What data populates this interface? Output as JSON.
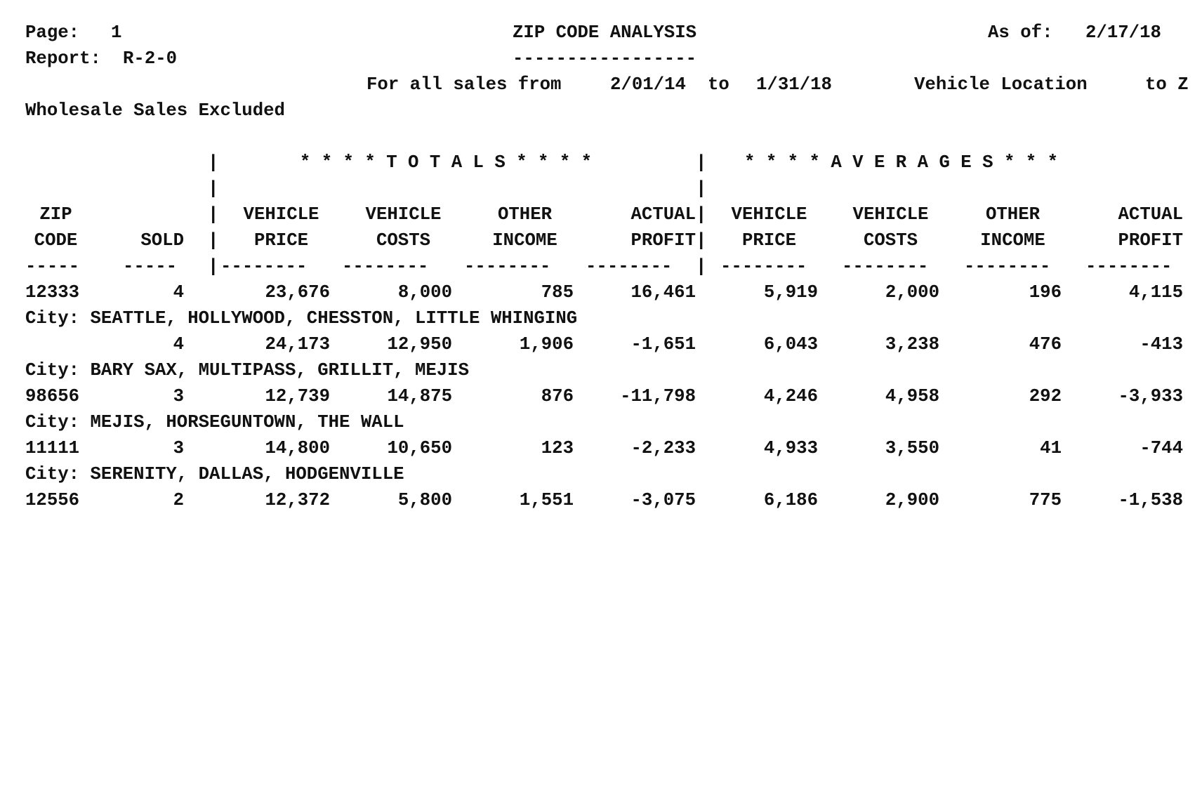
{
  "header": {
    "page_label": "Page:",
    "page_number": "1",
    "report_label": "Report:",
    "report_id": "R-2-0",
    "title": "ZIP CODE ANALYSIS",
    "title_underline": "-----------------",
    "as_of_label": "As of:",
    "as_of_date": "2/17/18",
    "date_range_prefix": "For all sales from",
    "date_from": "2/01/14",
    "date_to_label": "to",
    "date_to": "1/31/18",
    "location_label": "Vehicle Location",
    "location_range": "to Z",
    "wholesale_note": "Wholesale Sales Excluded"
  },
  "groups": {
    "totals": "* * * * T O T A L S * * * *",
    "averages": "* * * * A V E R A G E S * * *"
  },
  "columns": [
    {
      "key": "zip",
      "top": "ZIP",
      "bottom": "CODE",
      "rule": "-----"
    },
    {
      "key": "sold",
      "top": "",
      "bottom": "SOLD",
      "rule": "-----"
    },
    {
      "key": "tot_price",
      "top": "VEHICLE",
      "bottom": "PRICE",
      "rule": "--------"
    },
    {
      "key": "tot_costs",
      "top": "VEHICLE",
      "bottom": "COSTS",
      "rule": "--------"
    },
    {
      "key": "tot_income",
      "top": "OTHER",
      "bottom": "INCOME",
      "rule": "--------"
    },
    {
      "key": "tot_profit",
      "top": "ACTUAL",
      "bottom": "PROFIT",
      "rule": "--------"
    },
    {
      "key": "avg_price",
      "top": "VEHICLE",
      "bottom": "PRICE",
      "rule": "--------"
    },
    {
      "key": "avg_costs",
      "top": "VEHICLE",
      "bottom": "COSTS",
      "rule": "--------"
    },
    {
      "key": "avg_income",
      "top": "OTHER",
      "bottom": "INCOME",
      "rule": "--------"
    },
    {
      "key": "avg_profit",
      "top": "ACTUAL",
      "bottom": "PROFIT",
      "rule": "--------"
    }
  ],
  "separator": "|",
  "rows": [
    {
      "zip": "12333",
      "sold": "4",
      "tot_price": "23,676",
      "tot_costs": "8,000",
      "tot_income": "785",
      "tot_profit": "16,461",
      "avg_price": "5,919",
      "avg_costs": "2,000",
      "avg_income": "196",
      "avg_profit": "4,115",
      "city": "City: SEATTLE, HOLLYWOOD, CHESSTON, LITTLE WHINGING"
    },
    {
      "zip": "",
      "sold": "4",
      "tot_price": "24,173",
      "tot_costs": "12,950",
      "tot_income": "1,906",
      "tot_profit": "-1,651",
      "avg_price": "6,043",
      "avg_costs": "3,238",
      "avg_income": "476",
      "avg_profit": "-413",
      "city": "City: BARY SAX, MULTIPASS, GRILLIT, MEJIS"
    },
    {
      "zip": "98656",
      "sold": "3",
      "tot_price": "12,739",
      "tot_costs": "14,875",
      "tot_income": "876",
      "tot_profit": "-11,798",
      "avg_price": "4,246",
      "avg_costs": "4,958",
      "avg_income": "292",
      "avg_profit": "-3,933",
      "city": "City: MEJIS, HORSEGUNTOWN, THE WALL"
    },
    {
      "zip": "11111",
      "sold": "3",
      "tot_price": "14,800",
      "tot_costs": "10,650",
      "tot_income": "123",
      "tot_profit": "-2,233",
      "avg_price": "4,933",
      "avg_costs": "3,550",
      "avg_income": "41",
      "avg_profit": "-744",
      "city": "City: SERENITY, DALLAS, HODGENVILLE"
    },
    {
      "zip": "12556",
      "sold": "2",
      "tot_price": "12,372",
      "tot_costs": "5,800",
      "tot_income": "1,551",
      "tot_profit": "-3,075",
      "avg_price": "6,186",
      "avg_costs": "2,900",
      "avg_income": "775",
      "avg_profit": "-1,538",
      "city": ""
    }
  ]
}
